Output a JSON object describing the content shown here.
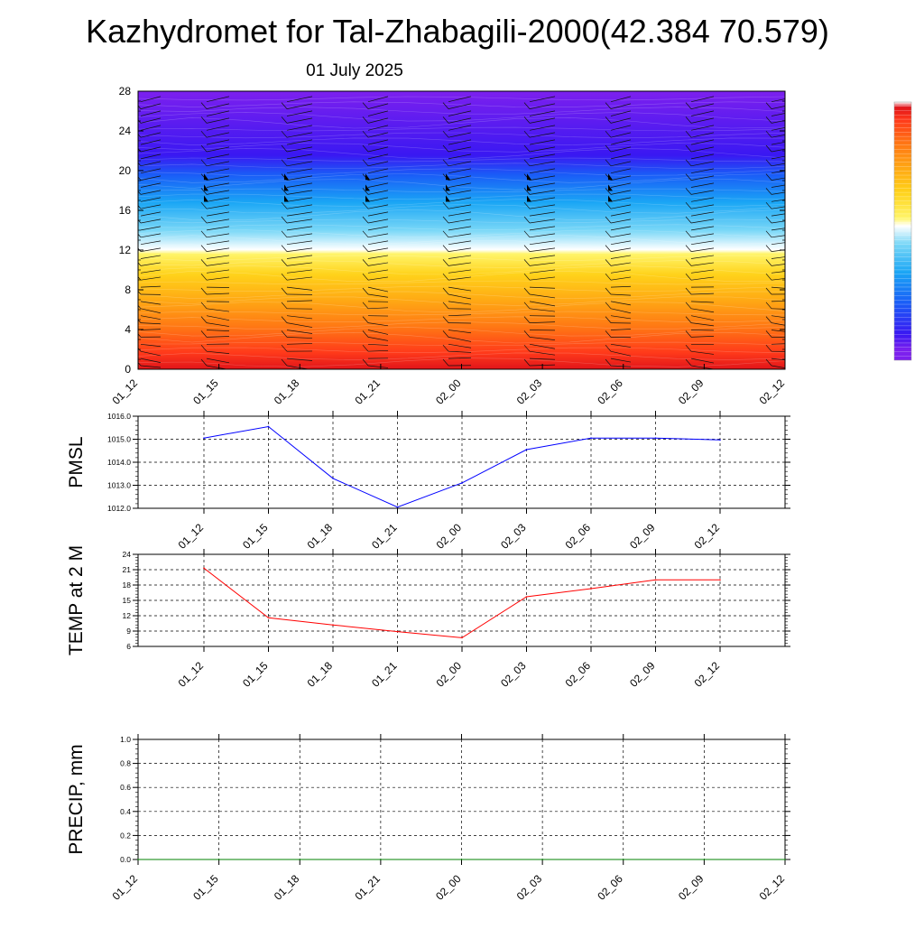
{
  "header": {
    "title": "Kazhydromet for Tal-Zhabagili-2000(42.384 70.579)",
    "date": "01 July 2025"
  },
  "chart_data": [
    {
      "id": "cross-section",
      "type": "heatmap",
      "x_ticks": [
        "01_12",
        "01_15",
        "01_18",
        "01_21",
        "02_00",
        "02_03",
        "02_06",
        "02_09",
        "02_12"
      ],
      "y_ticks": [
        0,
        4,
        8,
        12,
        16,
        20,
        24,
        28
      ],
      "ylim": [
        0,
        28
      ],
      "colormap": [
        "#7c20ee",
        "#3a18f2",
        "#1a5cf7",
        "#1aa6f5",
        "#79d7f7",
        "#ffffff",
        "#fff56a",
        "#ffd21a",
        "#ffaa14",
        "#ff7614",
        "#ff3a1a",
        "#e1141a",
        "#ffffff"
      ],
      "wind_barbs": true
    },
    {
      "id": "pmsl",
      "type": "line",
      "ylabel": "PMSL",
      "x": [
        "01_12",
        "01_15",
        "01_18",
        "01_21",
        "02_00",
        "02_03",
        "02_06",
        "02_09",
        "02_12"
      ],
      "values": [
        1015.05,
        1015.55,
        1013.3,
        1012.05,
        1013.1,
        1014.55,
        1015.05,
        1015.05,
        1014.97
      ],
      "ylim": [
        1012.0,
        1016.0
      ],
      "y_ticks": [
        "1012.0",
        "1013.0",
        "1014.0",
        "1015.0",
        "1016.0"
      ],
      "color": "#0000ff",
      "grid": true
    },
    {
      "id": "temp",
      "type": "line",
      "ylabel": "TEMP at 2 M",
      "x": [
        "01_12",
        "01_15",
        "01_18",
        "01_21",
        "02_00",
        "02_03",
        "02_06",
        "02_09",
        "02_12"
      ],
      "values": [
        21.3,
        11.6,
        10.2,
        8.9,
        7.7,
        15.7,
        17.3,
        19.0,
        19.0
      ],
      "ylim": [
        6,
        24
      ],
      "y_ticks": [
        "6",
        "9",
        "12",
        "15",
        "18",
        "21",
        "24"
      ],
      "color": "#ff0000",
      "grid": true
    },
    {
      "id": "precip",
      "type": "line",
      "ylabel": "PRECIP, mm",
      "x_ticks": [
        "01_12",
        "01_15",
        "01_18",
        "01_21",
        "02_00",
        "02_03",
        "02_06",
        "02_09",
        "02_12"
      ],
      "values": [
        0,
        0,
        0,
        0,
        0,
        0,
        0,
        0,
        0
      ],
      "ylim": [
        0,
        1
      ],
      "y_ticks": [
        "0.0",
        "0.2",
        "0.4",
        "0.6",
        "0.8",
        "1.0"
      ],
      "color": "#008000",
      "grid": true
    }
  ],
  "colorbar": {
    "colors": [
      "#7c20ee",
      "#3a18f2",
      "#1a5cf7",
      "#1aa6f5",
      "#79d7f7",
      "#ffffff",
      "#fff56a",
      "#ffd21a",
      "#ffaa14",
      "#ff7614",
      "#ff3a1a",
      "#e1141a",
      "#ffffff"
    ]
  }
}
